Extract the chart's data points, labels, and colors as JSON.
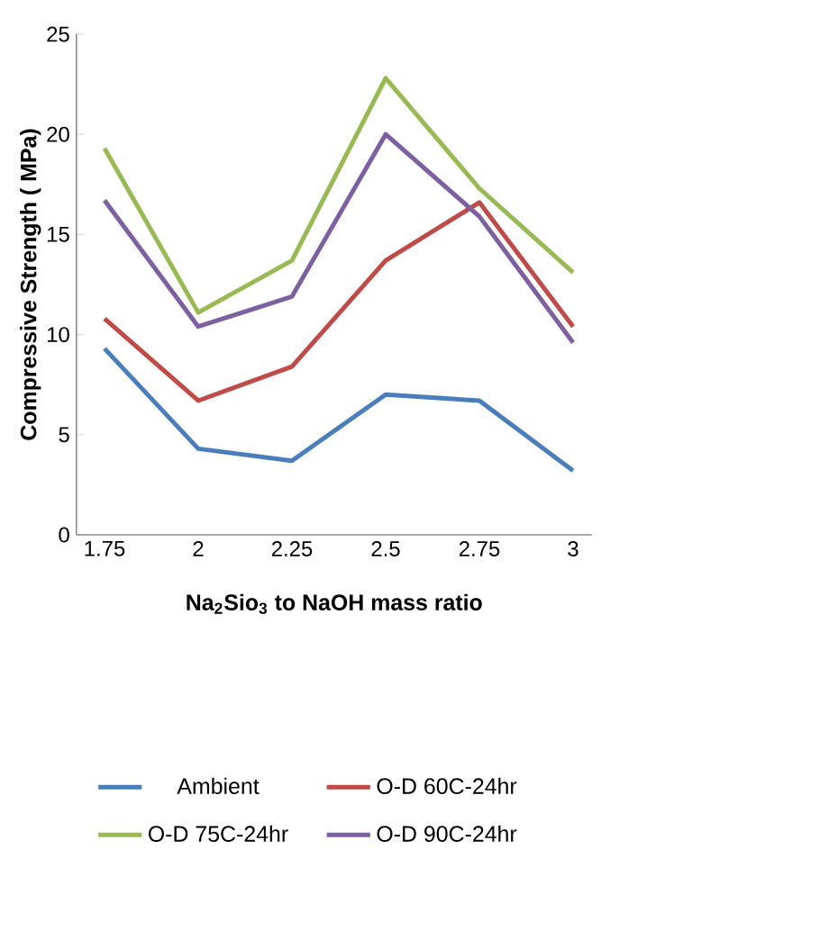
{
  "chart_data": {
    "type": "line",
    "xlabel": "Na$_{2}$Sio$_{3}$ to NaOH mass ratio",
    "ylabel": "Compressive Strength ( MPa)",
    "categories": [
      "1.75",
      "2",
      "2.25",
      "2.5",
      "2.75",
      "3"
    ],
    "ylim": [
      0,
      25
    ],
    "yticks": [
      0,
      5,
      10,
      15,
      20,
      25
    ],
    "legend": "bottom",
    "series": [
      {
        "name": "Ambient",
        "color": "#4a7ebb",
        "values": [
          9.3,
          4.3,
          3.7,
          7.0,
          6.7,
          3.2
        ]
      },
      {
        "name": "O-D 60C-24hr",
        "color": "#be4b48",
        "values": [
          10.8,
          6.7,
          8.4,
          13.7,
          16.6,
          10.4
        ]
      },
      {
        "name": "O-D 75C-24hr",
        "color": "#98b954",
        "values": [
          19.3,
          11.1,
          13.7,
          22.8,
          17.3,
          13.1
        ]
      },
      {
        "name": "O-D 90C-24hr",
        "color": "#7d60a0",
        "values": [
          16.7,
          10.4,
          11.9,
          20.0,
          15.9,
          9.6
        ]
      }
    ]
  }
}
